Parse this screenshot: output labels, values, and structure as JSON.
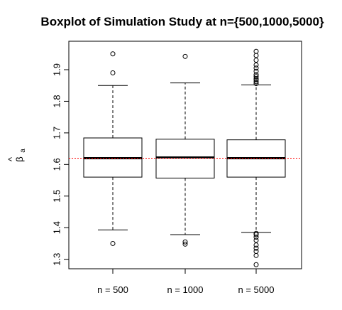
{
  "chart_data": {
    "type": "boxplot",
    "title": "Boxplot of Simulation Study at n={500,1000,5000}",
    "xlabel": "",
    "ylabel": {
      "symbol": "β",
      "hat": "^",
      "subscript": "a"
    },
    "categories": [
      "n = 500",
      "n = 1000",
      "n = 5000"
    ],
    "ylim": [
      1.27,
      1.99
    ],
    "yticks": [
      1.3,
      1.4,
      1.5,
      1.6,
      1.7,
      1.8,
      1.9
    ],
    "ytick_labels": [
      "1.3",
      "1.4",
      "1.5",
      "1.6",
      "1.7",
      "1.8",
      "1.9"
    ],
    "reference_line": {
      "y": 1.62,
      "color": "#ff0000",
      "style": "dotted"
    },
    "boxes": [
      {
        "name": "n = 500",
        "whisker_low": 1.393,
        "q1": 1.56,
        "median": 1.62,
        "q3": 1.684,
        "whisker_high": 1.85,
        "outliers": [
          1.35,
          1.89,
          1.95
        ]
      },
      {
        "name": "n = 1000",
        "whisker_low": 1.378,
        "q1": 1.557,
        "median": 1.622,
        "q3": 1.68,
        "whisker_high": 1.858,
        "outliers": [
          1.348,
          1.355,
          1.942
        ]
      },
      {
        "name": "n = 5000",
        "whisker_low": 1.385,
        "q1": 1.56,
        "median": 1.62,
        "q3": 1.678,
        "whisker_high": 1.852,
        "outliers": [
          1.283,
          1.312,
          1.325,
          1.335,
          1.345,
          1.36,
          1.37,
          1.378,
          1.382,
          1.856,
          1.862,
          1.868,
          1.872,
          1.878,
          1.884,
          1.895,
          1.905,
          1.915,
          1.93,
          1.945,
          1.958
        ]
      }
    ],
    "colors": {
      "box": "#000000",
      "median": "#000000",
      "reference": "#ff0000"
    }
  }
}
